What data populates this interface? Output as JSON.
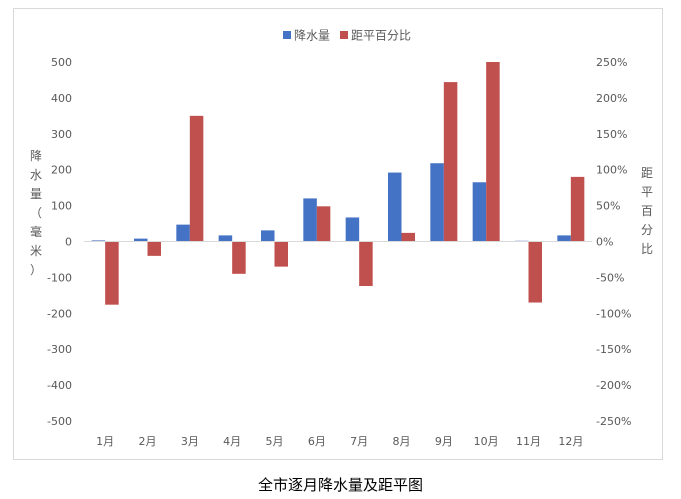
{
  "chart_data": {
    "type": "bar",
    "categories": [
      "1月",
      "2月",
      "3月",
      "4月",
      "5月",
      "6月",
      "7月",
      "8月",
      "9月",
      "10月",
      "11月",
      "12月"
    ],
    "series": [
      {
        "name": "降水量",
        "axis": "left",
        "color": "#4472c4",
        "values": [
          3,
          8,
          47,
          17,
          31,
          120,
          67,
          192,
          218,
          165,
          2,
          17
        ]
      },
      {
        "name": "距平百分比",
        "axis": "right",
        "color": "#c0504d",
        "values": [
          -88,
          -20,
          175,
          -45,
          -35,
          49,
          -62,
          12,
          222,
          250,
          -85,
          90
        ]
      }
    ],
    "ylabel": "降水量（毫米）",
    "ylabel_right": "距平百分比",
    "ylim": [
      -500,
      500
    ],
    "ylim_right": [
      -250,
      250
    ],
    "yticks": [
      "500",
      "400",
      "300",
      "200",
      "100",
      "0",
      "-100",
      "-200",
      "-300",
      "-400",
      "-500"
    ],
    "yticks_right": [
      "250%",
      "200%",
      "150%",
      "100%",
      "50%",
      "0%",
      "-50%",
      "-100%",
      "-150%",
      "-200%",
      "-250%"
    ],
    "legend_position": "top",
    "grid": false
  },
  "caption": "全市逐月降水量及距平图"
}
